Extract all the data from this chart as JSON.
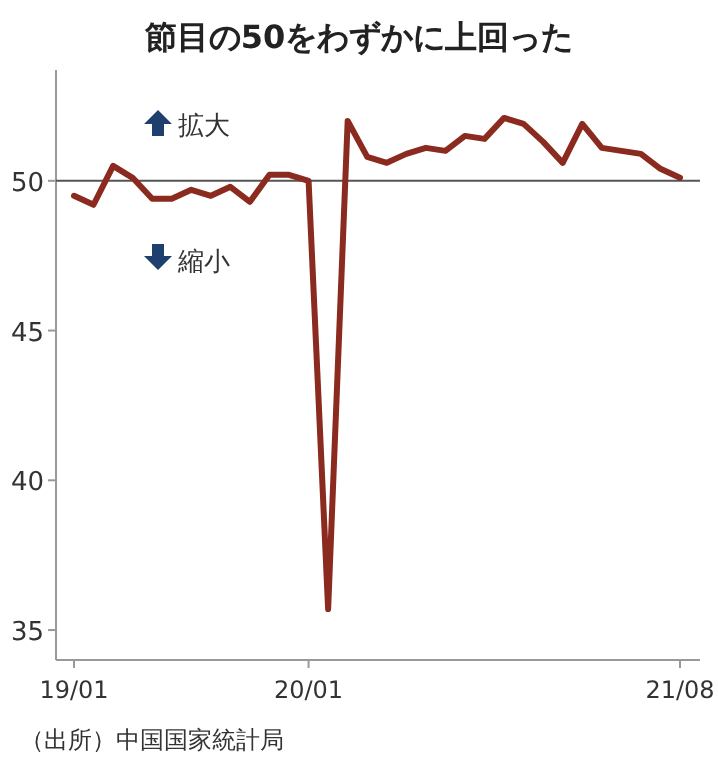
{
  "chart_data": {
    "type": "line",
    "title": "節目の50をわずかに上回った",
    "categories": [
      "19/01",
      null,
      null,
      null,
      null,
      null,
      null,
      null,
      null,
      null,
      null,
      null,
      "20/01",
      null,
      null,
      null,
      null,
      null,
      null,
      null,
      null,
      null,
      null,
      null,
      null,
      null,
      null,
      null,
      null,
      null,
      null,
      "21/08"
    ],
    "series": [
      {
        "color": "#8b2a1e",
        "values": [
          49.5,
          49.2,
          50.5,
          50.1,
          49.4,
          49.4,
          49.7,
          49.5,
          49.8,
          49.3,
          50.2,
          50.2,
          50.0,
          35.7,
          52.0,
          50.8,
          50.6,
          50.9,
          51.1,
          51.0,
          51.5,
          51.4,
          52.1,
          51.9,
          51.3,
          50.6,
          51.9,
          51.1,
          51.0,
          50.9,
          50.4,
          50.1
        ]
      }
    ],
    "ylim": [
      34,
      53.7
    ],
    "yticks": [
      35,
      40,
      45,
      50
    ],
    "ref_lines": [
      {
        "axis": "y",
        "value": 50,
        "color": "#555555"
      }
    ],
    "annotations": [
      "拡大",
      "縮小",
      "（出所）中国国家統計局"
    ],
    "grid": false,
    "marker": "none",
    "line_style": "solid"
  }
}
